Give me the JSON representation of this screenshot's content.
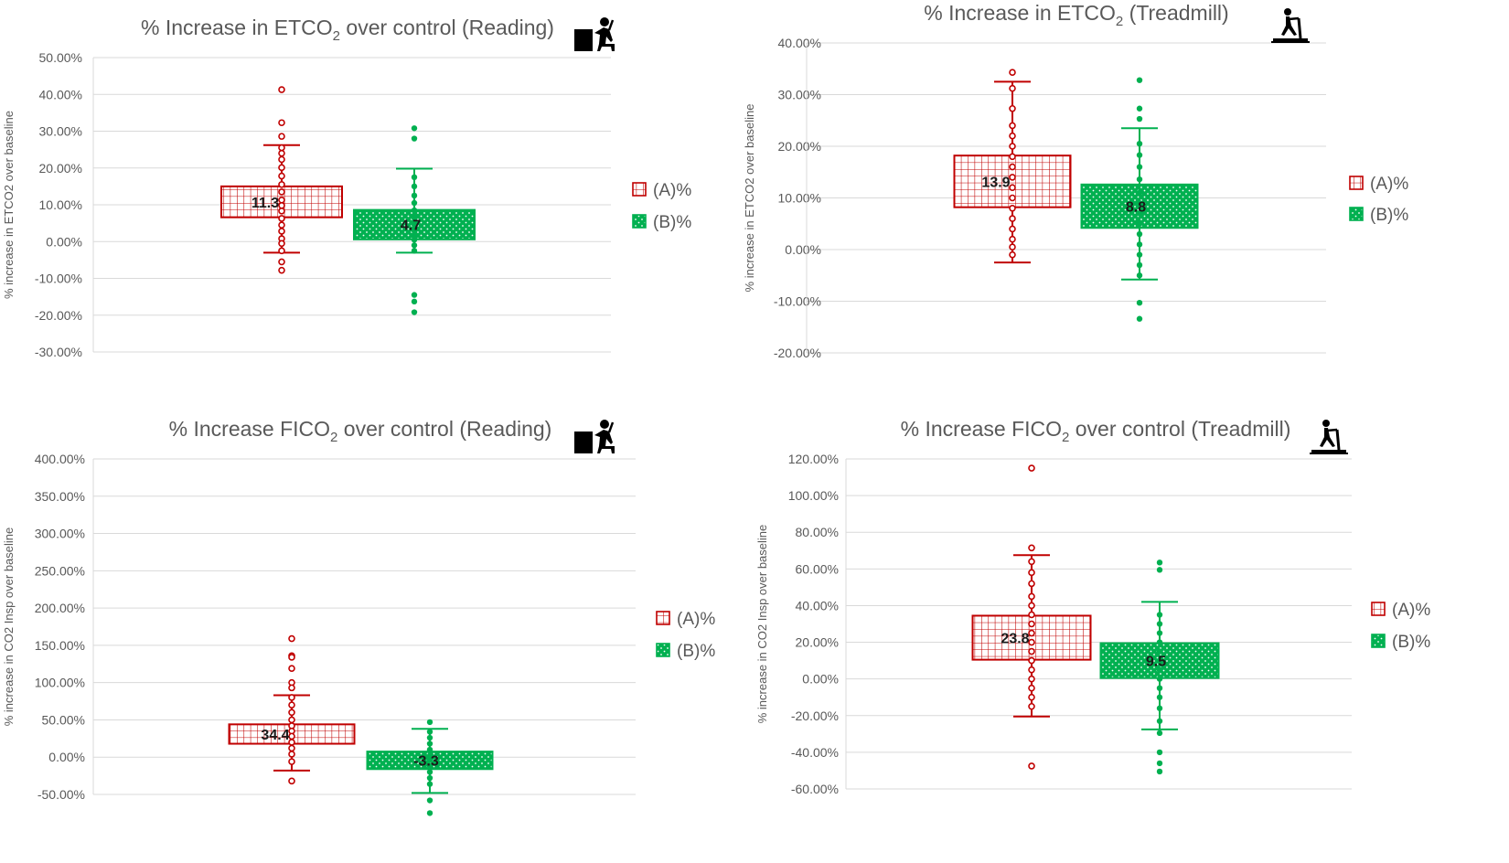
{
  "colors": {
    "A": "#c00000",
    "B": "#00b050",
    "grid": "#d9d9d9",
    "text": "#595959"
  },
  "chart_data": [
    {
      "type": "box",
      "title": "% Increase in ETCO",
      "title_sub": "2",
      "title_tail": " over control (Reading)",
      "icon": "person-at-desk-icon",
      "ylabel": "% increase in ETCO2 over baseline",
      "ylim": [
        -30,
        50
      ],
      "ytick_step": 10,
      "ytick_labels": [
        "50.00%",
        "40.00%",
        "30.00%",
        "20.00%",
        "10.00%",
        "0.00%",
        "-10.00%",
        "-20.00%",
        "-30.00%"
      ],
      "legend": "right",
      "series": [
        {
          "name": "(A)%",
          "label": "11.3",
          "box": [
            6.6,
            15
          ],
          "whisker": [
            -3,
            26.2
          ],
          "points": [
            41.3,
            32.3,
            28.6,
            25.5,
            24,
            22.3,
            20.1,
            17.8,
            15.5,
            13.5,
            11.3,
            9.8,
            8.3,
            6.3,
            4.5,
            2.8,
            0.8,
            -0.5,
            -2.5,
            -5.5,
            -7.8
          ]
        },
        {
          "name": "(B)%",
          "label": "4.7",
          "box": [
            0.6,
            8.6
          ],
          "whisker": [
            -3,
            19.8
          ],
          "points": [
            30.8,
            28,
            17.5,
            15,
            12.5,
            10.5,
            8.5,
            6.5,
            4.7,
            3,
            1.8,
            0.5,
            -1,
            -2.5,
            -14.5,
            -16.3,
            -19.2
          ]
        }
      ]
    },
    {
      "type": "box",
      "title": "% Increase in ETCO",
      "title_sub": "2",
      "title_tail": " (Treadmill)",
      "icon": "person-on-treadmill-icon",
      "ylabel": "% increase in ETCO2 over baseline",
      "ylim": [
        -20,
        40
      ],
      "ytick_step": 10,
      "ytick_labels": [
        "40.00%",
        "30.00%",
        "20.00%",
        "10.00%",
        "0.00%",
        "-10.00%",
        "-20.00%"
      ],
      "legend": "right",
      "series": [
        {
          "name": "(A)%",
          "label": "13.9",
          "box": [
            8.2,
            18.2
          ],
          "whisker": [
            -2.5,
            32.5
          ],
          "points": [
            34.3,
            31.2,
            27.3,
            24,
            22,
            20,
            18,
            16,
            14,
            12,
            10,
            8,
            6,
            4,
            2,
            0.5,
            -1
          ]
        },
        {
          "name": "(B)%",
          "label": "8.8",
          "box": [
            4.2,
            12.6
          ],
          "whisker": [
            -5.8,
            23.5
          ],
          "points": [
            32.8,
            27.3,
            25.3,
            20.5,
            18.3,
            16,
            13.6,
            11,
            9,
            7,
            5,
            3,
            1,
            -1,
            -3,
            -5,
            -10.3,
            -13.4
          ]
        }
      ]
    },
    {
      "type": "box",
      "title": "% Increase FICO",
      "title_sub": "2",
      "title_tail": " over control (Reading)",
      "icon": "person-at-desk-icon",
      "ylabel": "% increase in CO2 Insp over baseline",
      "ylim": [
        -50,
        400
      ],
      "ytick_step": 50,
      "ytick_labels": [
        "400.00%",
        "350.00%",
        "300.00%",
        "250.00%",
        "200.00%",
        "150.00%",
        "100.00%",
        "50.00%",
        "0.00%",
        "-50.00%"
      ],
      "legend": "right",
      "series": [
        {
          "name": "(A)%",
          "label": "34.4",
          "box": [
            18,
            44
          ],
          "whisker": [
            -18,
            83
          ],
          "points": [
            159,
            136,
            134,
            119,
            100,
            93,
            80,
            70,
            60,
            50,
            42,
            35,
            28,
            20,
            12,
            4,
            -6,
            -32
          ]
        },
        {
          "name": "(B)%",
          "label": "-3.3",
          "box": [
            -16,
            7.5
          ],
          "whisker": [
            -48,
            38
          ],
          "points": [
            47,
            34,
            26,
            18,
            10,
            2,
            -4,
            -12,
            -20,
            -28,
            -36,
            -58,
            -75
          ]
        }
      ]
    },
    {
      "type": "box",
      "title": "% Increase FICO",
      "title_sub": "2",
      "title_tail": " over control (Treadmill)",
      "icon": "person-on-treadmill-icon",
      "ylabel": "% increase in CO2 Insp over baseline",
      "ylim": [
        -60,
        120
      ],
      "ytick_step": 20,
      "ytick_labels": [
        "120.00%",
        "100.00%",
        "80.00%",
        "60.00%",
        "40.00%",
        "20.00%",
        "0.00%",
        "-20.00%",
        "-40.00%",
        "-60.00%"
      ],
      "legend": "right",
      "series": [
        {
          "name": "(A)%",
          "label": "23.8",
          "box": [
            10.5,
            34.5
          ],
          "whisker": [
            -20.5,
            67.5
          ],
          "points": [
            115,
            71.5,
            64,
            58,
            52,
            45,
            40,
            35,
            30,
            25,
            20,
            15,
            10,
            5,
            0,
            -5,
            -10,
            -15,
            -47.5
          ]
        },
        {
          "name": "(B)%",
          "label": "9.5",
          "box": [
            0.5,
            19.5
          ],
          "whisker": [
            -27.5,
            42
          ],
          "points": [
            63.5,
            59.5,
            35,
            30,
            25,
            20,
            15,
            10,
            5,
            0,
            -5,
            -10,
            -16,
            -23,
            -29.5,
            -40,
            -46,
            -50.5
          ]
        }
      ]
    }
  ]
}
